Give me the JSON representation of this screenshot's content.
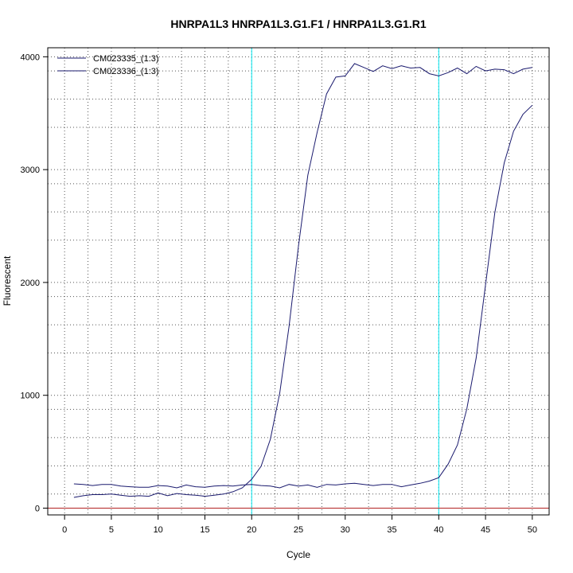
{
  "chart_data": {
    "type": "line",
    "title": "HNRPA1L3  HNRPA1L3.G1.F1 / HNRPA1L3.G1.R1",
    "xlabel": "Cycle",
    "ylabel": "Fluorescent",
    "xlim": [
      -1.8,
      51.8
    ],
    "ylim": [
      -60,
      4080
    ],
    "x_ticks": [
      0,
      5,
      10,
      15,
      20,
      25,
      30,
      35,
      40,
      45,
      50
    ],
    "y_ticks": [
      0,
      1000,
      2000,
      3000,
      4000
    ],
    "x_minor_gridlines": [
      2.5,
      7.5,
      12.5,
      17.5,
      22.5,
      27.5,
      32.5,
      37.5,
      42.5,
      47.5
    ],
    "y_gridlines": [
      0,
      125,
      375,
      625,
      875,
      1000,
      1375,
      1625,
      1875,
      2000,
      2375,
      2625,
      2875,
      3000,
      3375,
      3625,
      3875,
      4000
    ],
    "grid": true,
    "legend_position": "top-left",
    "series_color": "#1a1a6e",
    "threshold_lines": [
      {
        "axis": "x",
        "value": 20,
        "color": "#00e5ee"
      },
      {
        "axis": "x",
        "value": 40,
        "color": "#00e5ee"
      }
    ],
    "baseline": {
      "axis": "y",
      "value": 0,
      "color": "#b22222"
    },
    "x": [
      1,
      2,
      3,
      4,
      5,
      6,
      7,
      8,
      9,
      10,
      11,
      12,
      13,
      14,
      15,
      16,
      17,
      18,
      19,
      20,
      21,
      22,
      23,
      24,
      25,
      26,
      27,
      28,
      29,
      30,
      31,
      32,
      33,
      34,
      35,
      36,
      37,
      38,
      39,
      40,
      41,
      42,
      43,
      44,
      45,
      46,
      47,
      48,
      49,
      50
    ],
    "series": [
      {
        "name": "CM023335_(1:3)",
        "values": [
          215,
          210,
          200,
          210,
          210,
          195,
          190,
          185,
          185,
          200,
          195,
          180,
          205,
          190,
          185,
          195,
          200,
          195,
          205,
          210,
          200,
          195,
          180,
          210,
          195,
          205,
          185,
          210,
          205,
          215,
          220,
          210,
          200,
          210,
          210,
          190,
          205,
          220,
          240,
          270,
          390,
          560,
          880,
          1330,
          1980,
          2620,
          3060,
          3340,
          3490,
          3570
        ]
      },
      {
        "name": "CM023336_(1:3)",
        "values": [
          95,
          110,
          120,
          120,
          125,
          115,
          105,
          110,
          105,
          135,
          110,
          130,
          120,
          115,
          105,
          115,
          125,
          145,
          180,
          255,
          370,
          610,
          1020,
          1610,
          2320,
          2950,
          3330,
          3670,
          3820,
          3830,
          3940,
          3905,
          3870,
          3920,
          3895,
          3920,
          3900,
          3905,
          3850,
          3830,
          3860,
          3900,
          3850,
          3915,
          3875,
          3890,
          3885,
          3850,
          3890,
          3905
        ]
      }
    ]
  }
}
